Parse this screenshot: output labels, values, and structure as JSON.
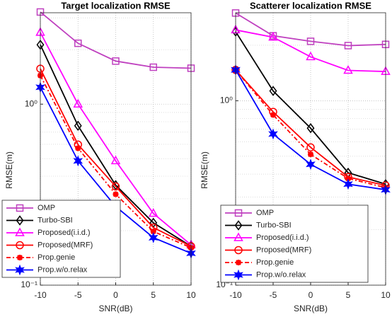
{
  "chart_data": [
    {
      "type": "line",
      "title": "Target localization RMSE",
      "x_label": "SNR(dB)",
      "y_label": "RMSE(m)",
      "x": [
        -10,
        -5,
        0,
        5,
        10
      ],
      "xlim": [
        -10,
        10
      ],
      "xticks": [
        -10,
        -5,
        0,
        5,
        10
      ],
      "ylim": [
        0.1,
        3.2
      ],
      "log_y": true,
      "grid": true,
      "minor_grid": true,
      "yticks": [
        {
          "value": 0.1,
          "label": "10⁻¹"
        },
        {
          "value": 1,
          "label": "10⁰"
        }
      ],
      "legend": "lower left",
      "series": [
        {
          "name": "OMP",
          "color": "#bf40bf",
          "marker": "square",
          "dash": "solid",
          "values": [
            3.23,
            2.17,
            1.73,
            1.6,
            1.58
          ]
        },
        {
          "name": "Turbo-SBI",
          "color": "#000000",
          "marker": "diamond",
          "dash": "solid",
          "values": [
            2.13,
            0.76,
            0.357,
            0.221,
            0.164
          ]
        },
        {
          "name": "Proposed(i.i.d.)",
          "color": "#ff00ff",
          "marker": "triangle",
          "dash": "solid",
          "values": [
            2.49,
            1.0,
            0.486,
            0.249,
            0.167
          ]
        },
        {
          "name": "Proposed(MRF)",
          "color": "#ff0000",
          "marker": "circle",
          "dash": "solid",
          "values": [
            1.57,
            0.598,
            0.351,
            0.208,
            0.164
          ]
        },
        {
          "name": "Prop.genie",
          "color": "#ff0000",
          "marker": "asterisk",
          "dash": "dashdot",
          "values": [
            1.44,
            0.571,
            0.318,
            0.198,
            0.161
          ]
        },
        {
          "name": "Prop.w/o.relax",
          "color": "#0000ff",
          "marker": "hexagram",
          "dash": "solid",
          "values": [
            1.24,
            0.486,
            0.272,
            0.183,
            0.15
          ]
        }
      ]
    },
    {
      "type": "line",
      "title": "Scatterer localization RMSE",
      "x_label": "SNR(dB)",
      "y_label": "RMSE(m)",
      "x": [
        -10,
        -5,
        0,
        5,
        10
      ],
      "xlim": [
        -10,
        10
      ],
      "xticks": [
        -10,
        -5,
        0,
        5,
        10
      ],
      "ylim": [
        0.1,
        3.0
      ],
      "log_y": true,
      "grid": true,
      "minor_grid": true,
      "yticks": [
        {
          "value": 0.1,
          "label": "10⁻¹"
        },
        {
          "value": 1,
          "label": "10⁰"
        }
      ],
      "legend": "lower left",
      "series": [
        {
          "name": "OMP",
          "color": "#bf40bf",
          "marker": "square",
          "dash": "solid",
          "values": [
            2.99,
            2.25,
            2.1,
            1.99,
            2.02
          ]
        },
        {
          "name": "Turbo-SBI",
          "color": "#000000",
          "marker": "diamond",
          "dash": "solid",
          "values": [
            2.37,
            1.13,
            0.71,
            0.407,
            0.353
          ]
        },
        {
          "name": "Proposed(i.i.d.)",
          "color": "#ff00ff",
          "marker": "triangle",
          "dash": "solid",
          "values": [
            2.42,
            2.21,
            1.73,
            1.46,
            1.44
          ]
        },
        {
          "name": "Proposed(MRF)",
          "color": "#ff0000",
          "marker": "circle",
          "dash": "solid",
          "values": [
            1.47,
            0.87,
            0.559,
            0.386,
            0.347
          ]
        },
        {
          "name": "Prop.genie",
          "color": "#ff0000",
          "marker": "asterisk",
          "dash": "dashdot",
          "values": [
            1.47,
            0.838,
            0.512,
            0.379,
            0.338
          ]
        },
        {
          "name": "Prop.w/o.relax",
          "color": "#0000ff",
          "marker": "hexagram",
          "dash": "solid",
          "values": [
            1.47,
            0.66,
            0.452,
            0.353,
            0.329
          ]
        }
      ]
    }
  ]
}
